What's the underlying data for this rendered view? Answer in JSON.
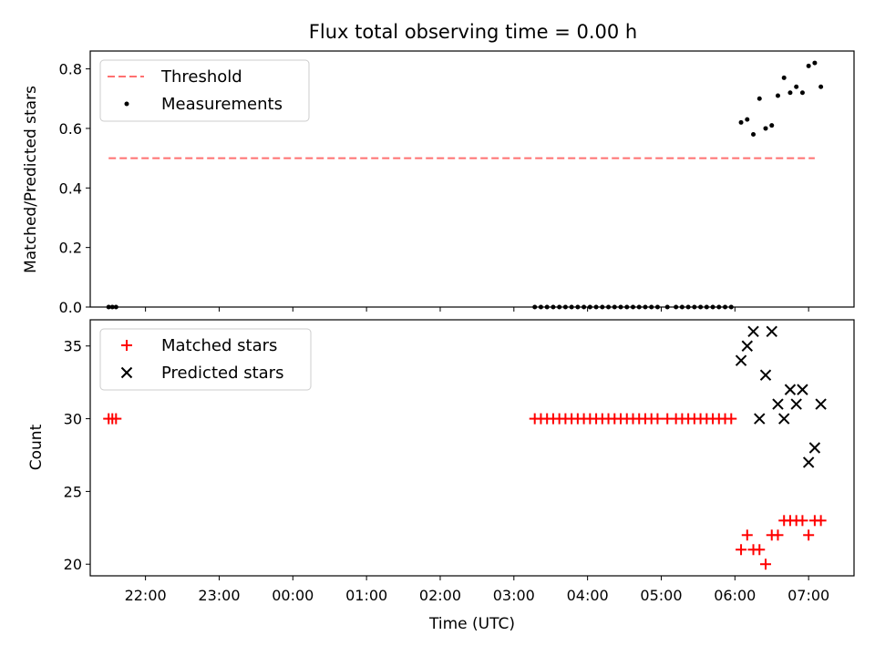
{
  "chart_data": {
    "type": "scatter",
    "title": "Flux total observing time = 0.00 h",
    "xlabel": "Time (UTC)",
    "xlim": [
      "21:15",
      "07:37"
    ],
    "x_ticks": [
      "22:00",
      "23:00",
      "00:00",
      "01:00",
      "02:00",
      "03:00",
      "04:00",
      "05:00",
      "06:00",
      "07:00"
    ],
    "colors": {
      "threshold": "#ff7070",
      "measurements": "#000000",
      "matched": "#ff0000",
      "predicted": "#000000"
    },
    "panels": [
      {
        "ylabel": "Matched/Predicted stars",
        "ylim": [
          0,
          0.86
        ],
        "y_ticks": [
          "0.0",
          "0.2",
          "0.4",
          "0.6",
          "0.8"
        ],
        "legend_position": "top-left",
        "threshold": {
          "name": "Threshold",
          "y": 0.5,
          "x_start": "21:30",
          "x_end": "07:05"
        },
        "series": [
          {
            "name": "Measurements",
            "marker": "dot",
            "x": [
              "21:30",
              "21:33",
              "21:36",
              "03:17",
              "03:22",
              "03:27",
              "03:32",
              "03:37",
              "03:42",
              "03:47",
              "03:52",
              "03:57",
              "04:02",
              "04:07",
              "04:12",
              "04:17",
              "04:22",
              "04:27",
              "04:32",
              "04:37",
              "04:42",
              "04:47",
              "04:52",
              "04:57",
              "05:05",
              "05:12",
              "05:17",
              "05:22",
              "05:27",
              "05:32",
              "05:37",
              "05:42",
              "05:47",
              "05:52",
              "05:57",
              "06:05",
              "06:10",
              "06:15",
              "06:20",
              "06:25",
              "06:30",
              "06:35",
              "06:40",
              "06:45",
              "06:50",
              "06:55",
              "07:00",
              "07:05",
              "07:10"
            ],
            "y": [
              0,
              0,
              0,
              0,
              0,
              0,
              0,
              0,
              0,
              0,
              0,
              0,
              0,
              0,
              0,
              0,
              0,
              0,
              0,
              0,
              0,
              0,
              0,
              0,
              0,
              0,
              0,
              0,
              0,
              0,
              0,
              0,
              0,
              0,
              0,
              0.62,
              0.63,
              0.58,
              0.7,
              0.6,
              0.61,
              0.71,
              0.77,
              0.72,
              0.74,
              0.72,
              0.81,
              0.82,
              0.74
            ]
          }
        ]
      },
      {
        "ylabel": "Count",
        "ylim": [
          19.2,
          36.8
        ],
        "y_ticks": [
          "20",
          "25",
          "30",
          "35"
        ],
        "legend_position": "top-left",
        "series": [
          {
            "name": "Matched stars",
            "marker": "plus",
            "x": [
              "21:30",
              "21:33",
              "21:36",
              "03:17",
              "03:22",
              "03:27",
              "03:32",
              "03:37",
              "03:42",
              "03:47",
              "03:52",
              "03:57",
              "04:02",
              "04:07",
              "04:12",
              "04:17",
              "04:22",
              "04:27",
              "04:32",
              "04:37",
              "04:42",
              "04:47",
              "04:52",
              "04:57",
              "05:05",
              "05:12",
              "05:17",
              "05:22",
              "05:27",
              "05:32",
              "05:37",
              "05:42",
              "05:47",
              "05:52",
              "05:57",
              "06:05",
              "06:10",
              "06:15",
              "06:20",
              "06:25",
              "06:30",
              "06:35",
              "06:40",
              "06:45",
              "06:50",
              "06:55",
              "07:00",
              "07:05",
              "07:10"
            ],
            "y": [
              30,
              30,
              30,
              30,
              30,
              30,
              30,
              30,
              30,
              30,
              30,
              30,
              30,
              30,
              30,
              30,
              30,
              30,
              30,
              30,
              30,
              30,
              30,
              30,
              30,
              30,
              30,
              30,
              30,
              30,
              30,
              30,
              30,
              30,
              30,
              21,
              22,
              21,
              21,
              20,
              22,
              22,
              23,
              23,
              23,
              23,
              22,
              23,
              23
            ]
          },
          {
            "name": "Predicted stars",
            "marker": "x",
            "x": [
              "06:05",
              "06:10",
              "06:15",
              "06:20",
              "06:25",
              "06:30",
              "06:35",
              "06:40",
              "06:45",
              "06:50",
              "06:55",
              "07:00",
              "07:05",
              "07:10"
            ],
            "y": [
              34,
              35,
              36,
              30,
              33,
              36,
              31,
              30,
              32,
              31,
              32,
              27,
              28,
              31
            ]
          }
        ]
      }
    ]
  }
}
